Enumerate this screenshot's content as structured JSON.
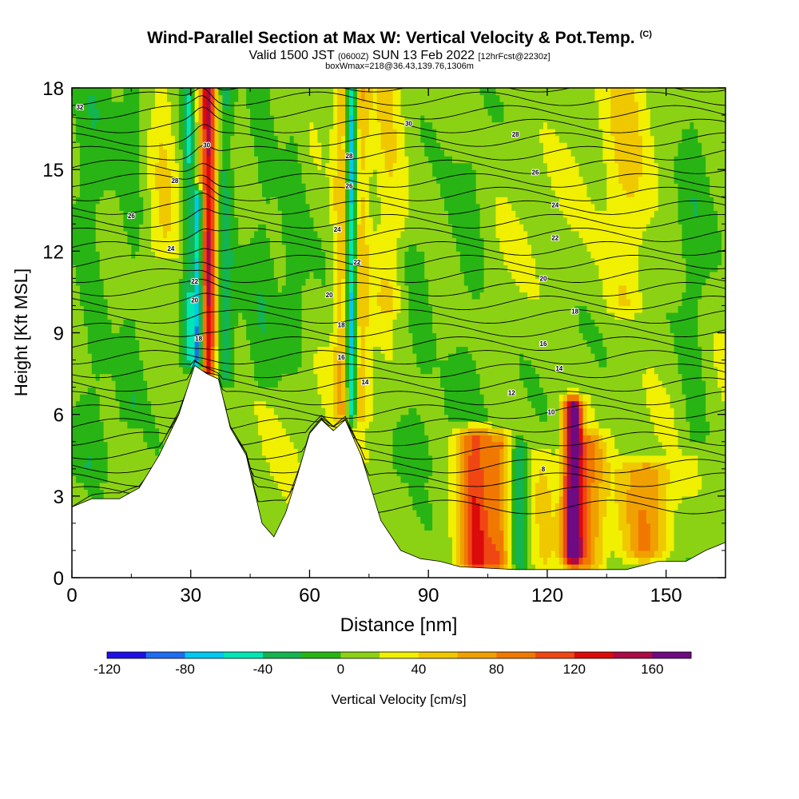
{
  "header": {
    "title": "Wind-Parallel Section at Max W: Vertical Velocity & Pot.Temp.",
    "copyright": "(C)",
    "valid_main": "Valid 1500 JST",
    "valid_z": "(0600Z)",
    "valid_date": "SUN 13 Feb 2022",
    "valid_fcst": "[12hrFcst@2230z]",
    "box_info": "boxWmax=218@36.43,139.76,1306m"
  },
  "chart_data": {
    "type": "heatmap",
    "xlabel": "Distance [nm]",
    "ylabel": "Height [Kft MSL]",
    "xlim": [
      0,
      165
    ],
    "ylim": [
      0,
      18
    ],
    "xticks": [
      0,
      30,
      60,
      90,
      120,
      150
    ],
    "yticks": [
      0,
      3,
      6,
      9,
      12,
      15,
      18
    ],
    "colorbar": {
      "label": "Vertical Velocity [cm/s]",
      "min": -120,
      "max": 180,
      "step": 20,
      "ticks": [
        -120,
        -80,
        -40,
        0,
        40,
        80,
        120,
        160
      ],
      "colors": [
        "#1e10e6",
        "#1e6cf0",
        "#00c8f0",
        "#00e6b4",
        "#14b450",
        "#28b414",
        "#8cd214",
        "#f0f000",
        "#f0c800",
        "#f0a000",
        "#f07800",
        "#f04614",
        "#dc0a0a",
        "#aa0a46",
        "#6e0a82"
      ]
    },
    "terrain": [
      [
        0,
        2.6
      ],
      [
        5,
        2.9
      ],
      [
        12,
        2.9
      ],
      [
        17,
        3.3
      ],
      [
        22,
        4.5
      ],
      [
        27,
        6.0
      ],
      [
        31,
        7.8
      ],
      [
        34,
        7.5
      ],
      [
        37,
        7.3
      ],
      [
        40,
        5.5
      ],
      [
        44,
        4.5
      ],
      [
        48,
        2.0
      ],
      [
        51,
        1.5
      ],
      [
        54,
        2.4
      ],
      [
        57,
        3.8
      ],
      [
        60,
        5.3
      ],
      [
        63,
        5.8
      ],
      [
        66,
        5.4
      ],
      [
        69,
        5.8
      ],
      [
        73,
        4.5
      ],
      [
        78,
        2.1
      ],
      [
        83,
        1.0
      ],
      [
        88,
        0.7
      ],
      [
        93,
        0.6
      ],
      [
        98,
        0.4
      ],
      [
        112,
        0.3
      ],
      [
        124,
        0.3
      ],
      [
        140,
        0.3
      ],
      [
        148,
        0.6
      ],
      [
        155,
        0.6
      ],
      [
        160,
        1.0
      ],
      [
        165,
        1.3
      ]
    ],
    "features": [
      {
        "x": 34.5,
        "w": 2.2,
        "v": 130,
        "y0": 7.5,
        "y1": 18
      },
      {
        "x": 32.0,
        "w": 1.2,
        "v": -110,
        "y0": 8,
        "y1": 14
      },
      {
        "x": 29.5,
        "w": 1.6,
        "v": -50,
        "y0": 8,
        "y1": 18
      },
      {
        "x": 38.5,
        "w": 2.5,
        "v": -45,
        "y0": 7.5,
        "y1": 18
      },
      {
        "x": 70.5,
        "w": 1.3,
        "v": -90,
        "y0": 6,
        "y1": 18
      },
      {
        "x": 68.0,
        "w": 2.0,
        "v": 45,
        "y0": 6,
        "y1": 18
      },
      {
        "x": 73.0,
        "w": 2.2,
        "v": 40,
        "y0": 6,
        "y1": 18
      },
      {
        "x": 23.0,
        "w": 3.0,
        "v": 25,
        "y0": 12,
        "y1": 18
      },
      {
        "x": 48.0,
        "w": 4.0,
        "v": -20,
        "y0": 7,
        "y1": 18
      },
      {
        "x": 56.0,
        "w": 3.0,
        "v": -20,
        "y0": 8,
        "y1": 18
      },
      {
        "x": 102.0,
        "w": 4.5,
        "v": 110,
        "y0": 0.5,
        "y1": 5.2
      },
      {
        "x": 108.0,
        "w": 2.5,
        "v": 60,
        "y0": 0.5,
        "y1": 5.0
      },
      {
        "x": 113.0,
        "w": 2.0,
        "v": -45,
        "y0": 0.5,
        "y1": 4.8
      },
      {
        "x": 119.0,
        "w": 3.0,
        "v": 25,
        "y0": 0.5,
        "y1": 4.5
      },
      {
        "x": 126.5,
        "w": 2.5,
        "v": 170,
        "y0": 0.8,
        "y1": 6.3
      },
      {
        "x": 131.0,
        "w": 3.5,
        "v": 60,
        "y0": 0.5,
        "y1": 5.0
      },
      {
        "x": 145.0,
        "w": 6.0,
        "v": 65,
        "y0": 1.0,
        "y1": 4.0
      },
      {
        "x": 100.0,
        "w": 5.0,
        "v": -20,
        "y0": 6,
        "y1": 15
      },
      {
        "x": 157.0,
        "w": 4.0,
        "v": -20,
        "y0": 5,
        "y1": 18
      },
      {
        "x": 140.0,
        "w": 5.0,
        "v": 30,
        "y0": 10,
        "y1": 18
      },
      {
        "x": 5.0,
        "w": 5.0,
        "v": -20,
        "y0": 4,
        "y1": 18
      },
      {
        "x": 15.0,
        "w": 3.0,
        "v": -20,
        "y0": 6,
        "y1": 18
      },
      {
        "x": 87.0,
        "w": 5.0,
        "v": -20,
        "y0": 4,
        "y1": 12
      },
      {
        "x": 80.0,
        "w": 4.0,
        "v": 30,
        "y0": 10,
        "y1": 18
      }
    ],
    "theta_labels": [
      {
        "x": 2,
        "y": 17.3,
        "text": "32"
      },
      {
        "x": 34,
        "y": 15.9,
        "text": "30"
      },
      {
        "x": 26,
        "y": 14.6,
        "text": "28"
      },
      {
        "x": 15,
        "y": 13.3,
        "text": "26"
      },
      {
        "x": 25,
        "y": 12.1,
        "text": "24"
      },
      {
        "x": 31,
        "y": 10.9,
        "text": "22"
      },
      {
        "x": 31,
        "y": 10.2,
        "text": "20"
      },
      {
        "x": 32,
        "y": 8.8,
        "text": "18"
      },
      {
        "x": 85,
        "y": 16.7,
        "text": "30"
      },
      {
        "x": 70,
        "y": 15.5,
        "text": "28"
      },
      {
        "x": 70,
        "y": 14.4,
        "text": "26"
      },
      {
        "x": 67,
        "y": 12.8,
        "text": "24"
      },
      {
        "x": 72,
        "y": 11.6,
        "text": "22"
      },
      {
        "x": 65,
        "y": 10.4,
        "text": "20"
      },
      {
        "x": 68,
        "y": 9.3,
        "text": "18"
      },
      {
        "x": 68,
        "y": 8.1,
        "text": "16"
      },
      {
        "x": 74,
        "y": 7.2,
        "text": "14"
      },
      {
        "x": 112,
        "y": 16.3,
        "text": "28"
      },
      {
        "x": 117,
        "y": 14.9,
        "text": "26"
      },
      {
        "x": 122,
        "y": 13.7,
        "text": "24"
      },
      {
        "x": 122,
        "y": 12.5,
        "text": "22"
      },
      {
        "x": 119,
        "y": 11.0,
        "text": "20"
      },
      {
        "x": 127,
        "y": 9.8,
        "text": "18"
      },
      {
        "x": 119,
        "y": 8.6,
        "text": "16"
      },
      {
        "x": 123,
        "y": 7.7,
        "text": "14"
      },
      {
        "x": 111,
        "y": 6.8,
        "text": "12"
      },
      {
        "x": 121,
        "y": 6.1,
        "text": "10"
      },
      {
        "x": 119,
        "y": 4.0,
        "text": "8"
      }
    ]
  }
}
